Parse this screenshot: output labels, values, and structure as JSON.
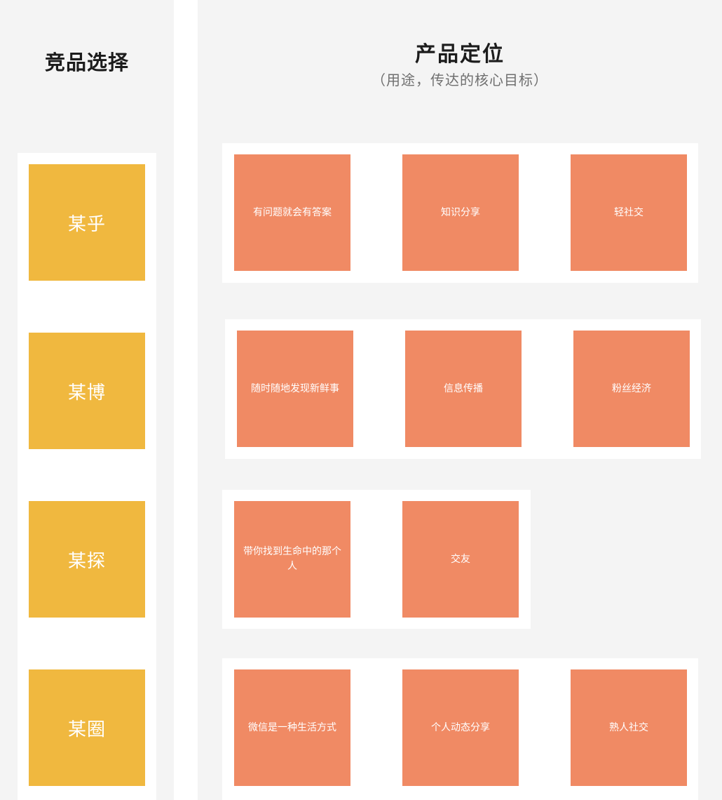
{
  "competitor_column": {
    "title": "竞品选择",
    "items": [
      "某乎",
      "某博",
      "某探",
      "某圈"
    ]
  },
  "positioning_column": {
    "title": "产品定位",
    "subtitle": "（用途，传达的核心目标）",
    "rows": [
      [
        "有问题就会有答案",
        "知识分享",
        "轻社交"
      ],
      [
        "随时随地发现新鲜事",
        "信息传播",
        "粉丝经济"
      ],
      [
        "带你找到生命中的那个人",
        "交友"
      ],
      [
        "微信是一种生活方式",
        "个人动态分享",
        "熟人社交"
      ]
    ]
  },
  "colors": {
    "competitor_note": "#f0b83f",
    "positioning_note": "#f08a64",
    "panel_background": "#f4f4f4"
  }
}
